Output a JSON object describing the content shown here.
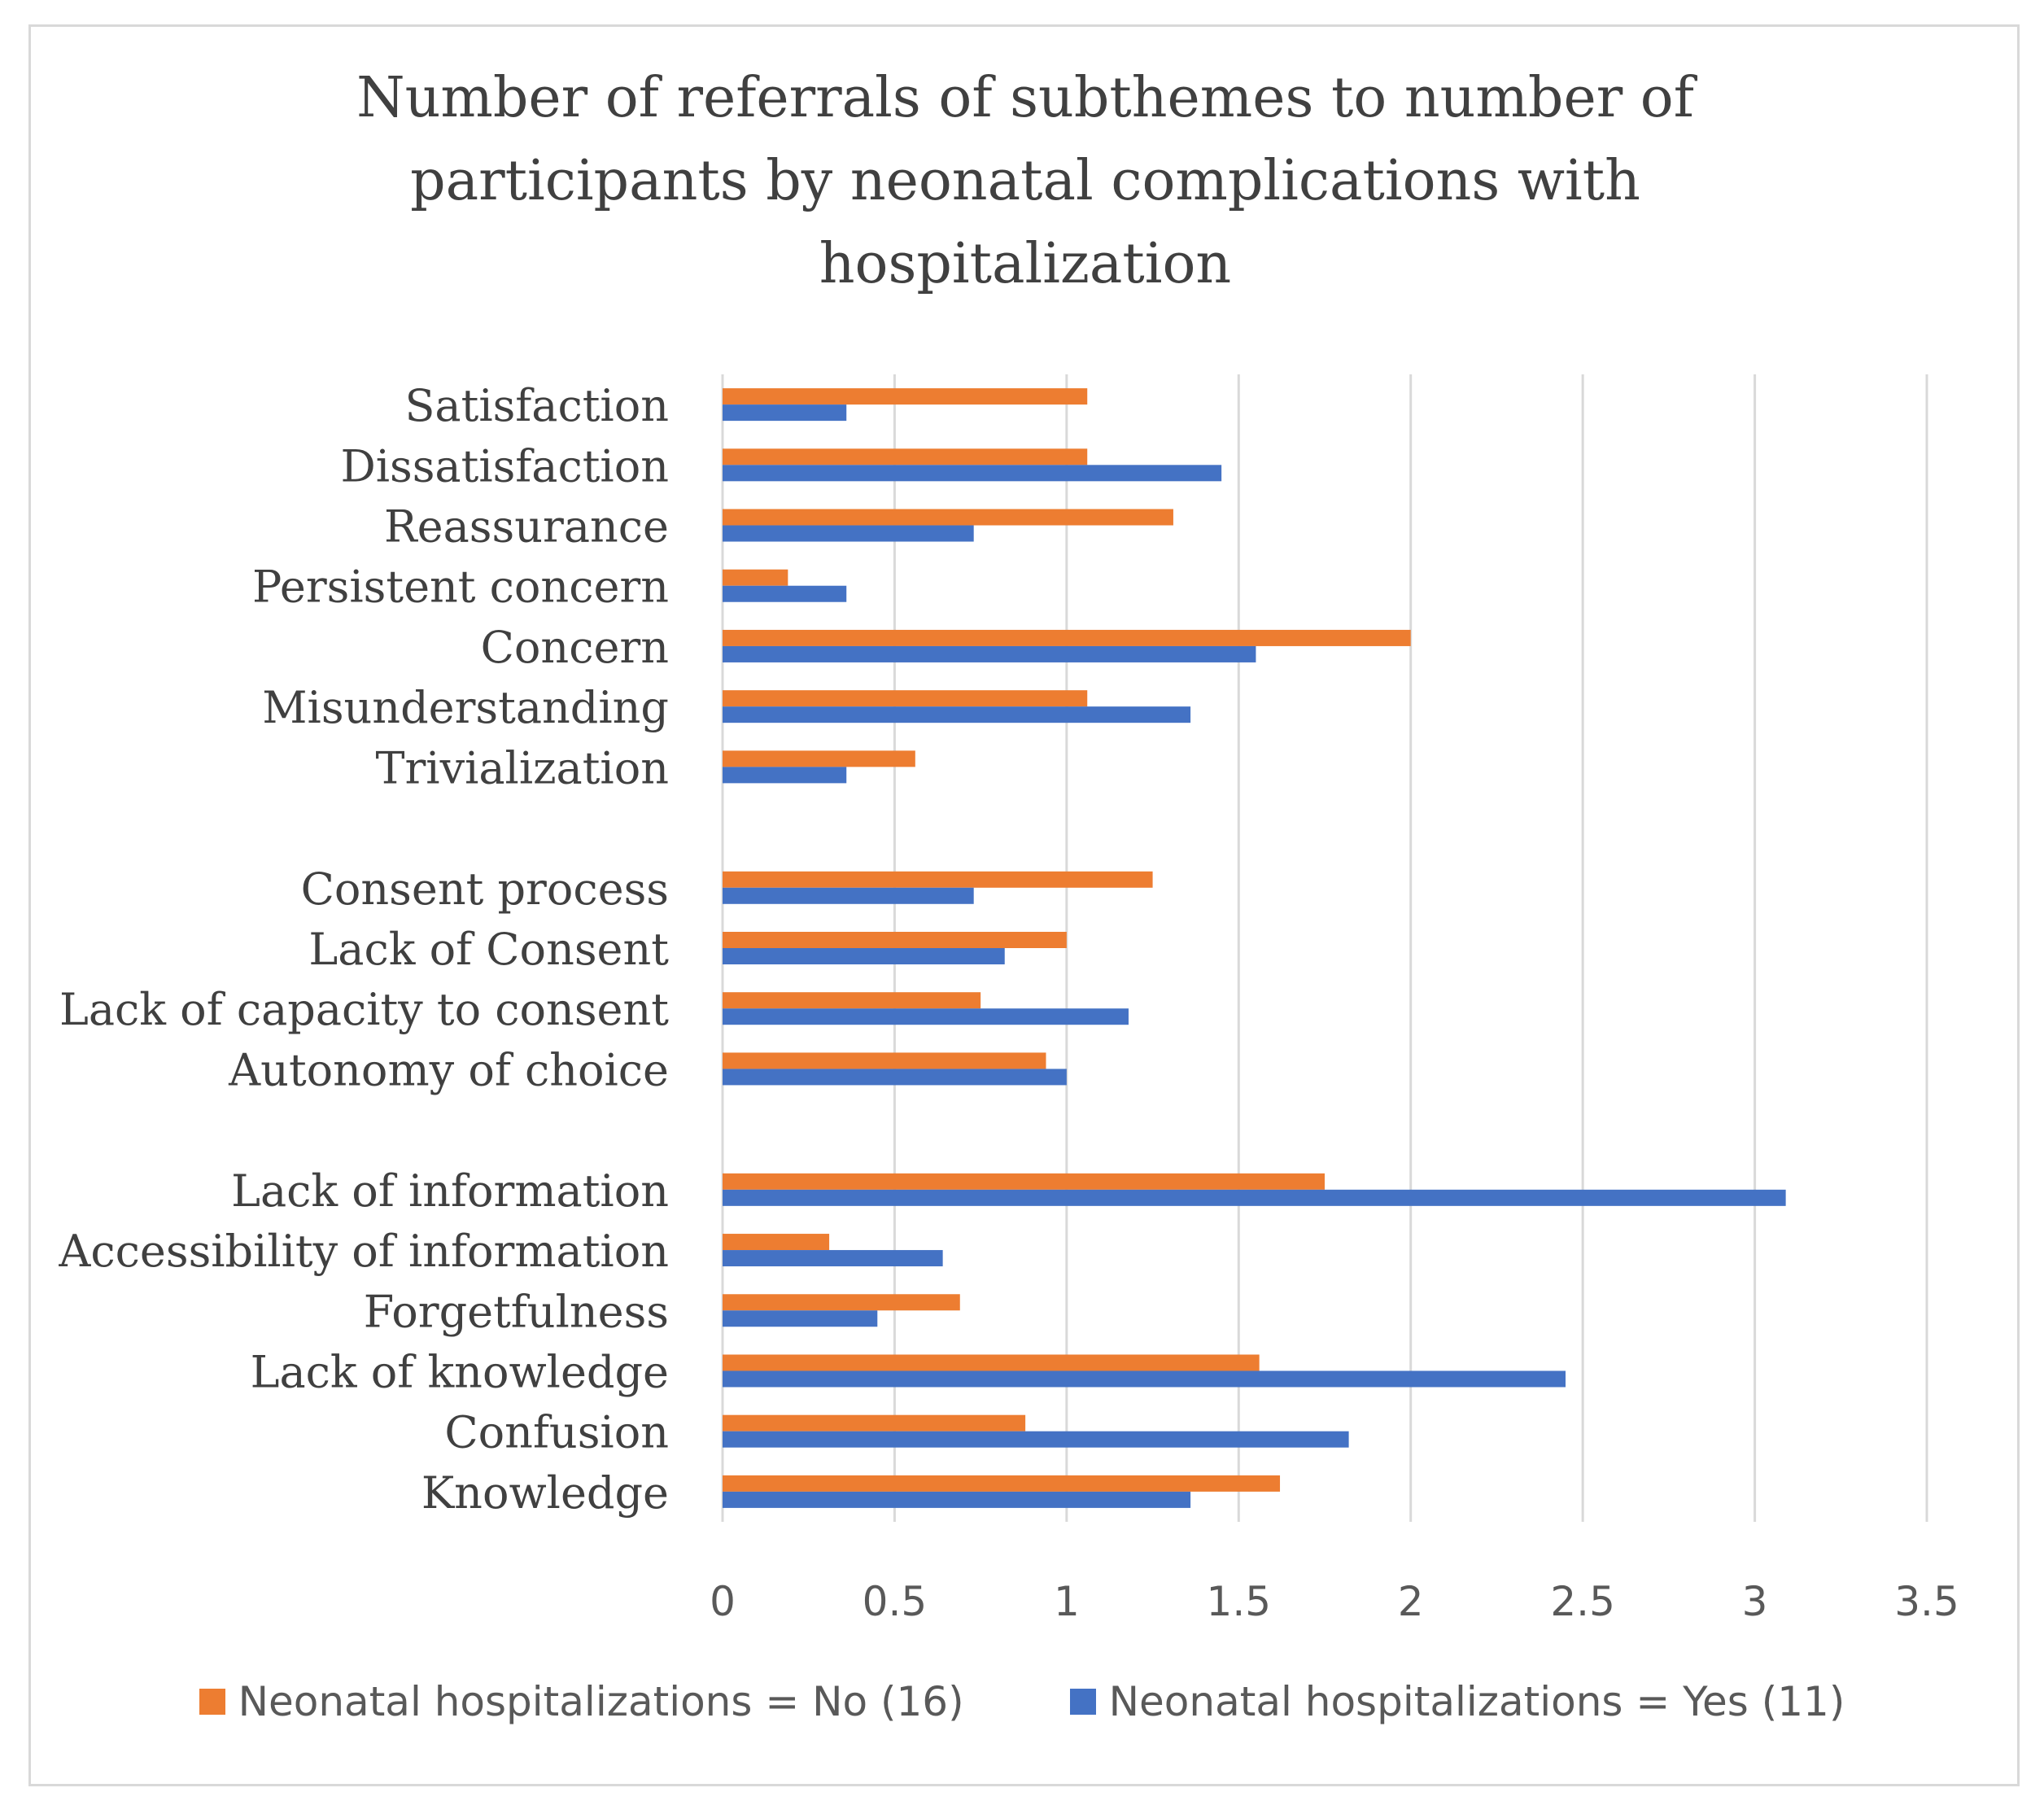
{
  "chart_data": {
    "type": "bar",
    "orientation": "horizontal",
    "title": "Number of referrals of subthemes to number of participants by neonatal complications with hospitalization",
    "title_lines": [
      "Number of referrals of subthemes to number of",
      "participants by neonatal complications with",
      "hospitalization"
    ],
    "categories": [
      "Satisfaction",
      "Dissatisfaction",
      "Reassurance",
      "Persistent concern",
      "Concern",
      "Misunderstanding",
      "Trivialization",
      "",
      "Consent process",
      "Lack of Consent",
      "Lack of capacity to consent",
      "Autonomy of choice",
      "",
      "Lack of information",
      "Accessibility of information",
      "Forgetfulness",
      "Lack of knowledge",
      "Confusion",
      "Knowledge"
    ],
    "series": [
      {
        "name": "Neonatal hospitalizations = No (16)",
        "color": "#ed7d31",
        "values": [
          1.06,
          1.06,
          1.31,
          0.19,
          2.0,
          1.06,
          0.56,
          null,
          1.25,
          1.0,
          0.75,
          0.94,
          null,
          1.75,
          0.31,
          0.69,
          1.56,
          0.88,
          1.62
        ]
      },
      {
        "name": "Neonatal hospitalizations = Yes (11)",
        "color": "#4472c4",
        "values": [
          0.36,
          1.45,
          0.73,
          0.36,
          1.55,
          1.36,
          0.36,
          null,
          0.73,
          0.82,
          1.18,
          1.0,
          null,
          3.09,
          0.64,
          0.45,
          2.45,
          1.82,
          1.36
        ]
      }
    ],
    "xlim": [
      0,
      3.5
    ],
    "xticks": [
      0,
      0.5,
      1,
      1.5,
      2,
      2.5,
      3,
      3.5
    ],
    "tick_labels": [
      "0",
      "0.5",
      "1",
      "1.5",
      "2",
      "2.5",
      "3",
      "3.5"
    ],
    "xlabel": "",
    "ylabel": "",
    "grid": "vertical",
    "legend": "bottom"
  }
}
